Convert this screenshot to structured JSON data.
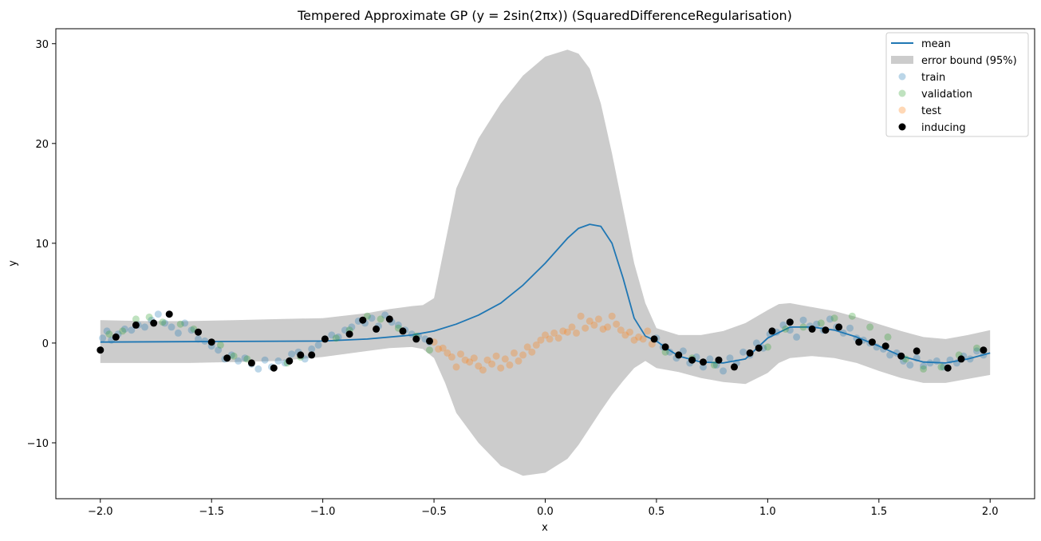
{
  "chart_data": {
    "type": "line",
    "title": "Tempered Approximate GP (y = 2sin(2πx)) (SquaredDifferenceRegularisation)",
    "xlabel": "x",
    "ylabel": "y",
    "xlim": [
      -2.2,
      2.2
    ],
    "ylim": [
      -15.6,
      31.5
    ],
    "xticks": [
      -2.0,
      -1.5,
      -1.0,
      -0.5,
      0.0,
      0.5,
      1.0,
      1.5,
      2.0
    ],
    "xtick_labels": [
      "−2.0",
      "−1.5",
      "−1.0",
      "−0.5",
      "0.0",
      "0.5",
      "1.0",
      "1.5",
      "2.0"
    ],
    "yticks": [
      -10,
      0,
      10,
      20,
      30
    ],
    "ytick_labels": [
      "−10",
      "0",
      "10",
      "20",
      "30"
    ],
    "grid": false,
    "legend_position": "top-right",
    "colors": {
      "mean": "#1f77b4",
      "band": "#cccccc",
      "train": "#1f77b4",
      "validation": "#2ca02c",
      "test": "#ff7f0e",
      "inducing": "#000000"
    },
    "legend": [
      {
        "key": "mean",
        "label": "mean",
        "kind": "line"
      },
      {
        "key": "band",
        "label": "error bound (95%)",
        "kind": "patch"
      },
      {
        "key": "train",
        "label": "train",
        "kind": "marker"
      },
      {
        "key": "validation",
        "label": "validation",
        "kind": "marker"
      },
      {
        "key": "test",
        "label": "test",
        "kind": "marker"
      },
      {
        "key": "inducing",
        "label": "inducing",
        "kind": "marker"
      }
    ],
    "mean": {
      "x": [
        -2.0,
        -1.5,
        -1.0,
        -0.8,
        -0.6,
        -0.5,
        -0.4,
        -0.3,
        -0.2,
        -0.1,
        0.0,
        0.1,
        0.15,
        0.2,
        0.25,
        0.3,
        0.35,
        0.4,
        0.45,
        0.5,
        0.55,
        0.6,
        0.7,
        0.8,
        0.9,
        1.0,
        1.1,
        1.2,
        1.3,
        1.4,
        1.5,
        1.6,
        1.7,
        1.8,
        1.9,
        2.0
      ],
      "y": [
        0.1,
        0.15,
        0.2,
        0.4,
        0.8,
        1.2,
        1.9,
        2.8,
        4.0,
        5.8,
        8.0,
        10.5,
        11.5,
        11.9,
        11.7,
        10.0,
        6.5,
        2.5,
        0.7,
        0.2,
        -0.6,
        -1.3,
        -1.9,
        -2.0,
        -1.6,
        0.5,
        1.6,
        1.6,
        1.3,
        0.6,
        -0.3,
        -1.3,
        -1.9,
        -2.0,
        -1.6,
        -1.0
      ]
    },
    "band": {
      "x": [
        -2.0,
        -1.8,
        -1.6,
        -1.4,
        -1.2,
        -1.0,
        -0.8,
        -0.7,
        -0.6,
        -0.55,
        -0.5,
        -0.45,
        -0.4,
        -0.3,
        -0.2,
        -0.1,
        0.0,
        0.1,
        0.15,
        0.2,
        0.25,
        0.3,
        0.35,
        0.4,
        0.45,
        0.5,
        0.6,
        0.7,
        0.8,
        0.9,
        1.0,
        1.05,
        1.1,
        1.2,
        1.3,
        1.4,
        1.5,
        1.6,
        1.7,
        1.8,
        1.9,
        2.0
      ],
      "upper": [
        2.3,
        2.2,
        2.2,
        2.3,
        2.4,
        2.5,
        3.0,
        3.4,
        3.7,
        3.8,
        4.5,
        10.0,
        15.5,
        20.5,
        24.0,
        26.8,
        28.7,
        29.4,
        29.0,
        27.5,
        24.0,
        19.0,
        13.5,
        8.0,
        4.0,
        1.5,
        0.8,
        0.8,
        1.2,
        2.0,
        3.3,
        3.9,
        4.0,
        3.6,
        3.2,
        2.6,
        1.9,
        1.2,
        0.6,
        0.4,
        0.8,
        1.3
      ],
      "lower": [
        -2.0,
        -2.0,
        -2.0,
        -1.9,
        -1.8,
        -1.4,
        -0.8,
        -0.5,
        -0.4,
        -0.6,
        -1.5,
        -4.0,
        -7.0,
        -10.0,
        -12.3,
        -13.3,
        -13.0,
        -11.6,
        -10.2,
        -8.5,
        -6.8,
        -5.2,
        -3.8,
        -2.5,
        -1.8,
        -2.5,
        -2.9,
        -3.5,
        -3.9,
        -4.1,
        -3.0,
        -2.0,
        -1.5,
        -1.3,
        -1.5,
        -2.0,
        -2.8,
        -3.5,
        -4.0,
        -4.0,
        -3.6,
        -3.2
      ]
    },
    "train": {
      "x": [
        -1.99,
        -1.97,
        -1.95,
        -1.92,
        -1.89,
        -1.86,
        -1.83,
        -1.8,
        -1.77,
        -1.74,
        -1.71,
        -1.68,
        -1.65,
        -1.62,
        -1.59,
        -1.56,
        -1.53,
        -1.5,
        -1.47,
        -1.44,
        -1.41,
        -1.38,
        -1.35,
        -1.32,
        -1.29,
        -1.26,
        -1.23,
        -1.2,
        -1.17,
        -1.14,
        -1.11,
        -1.08,
        -1.05,
        -1.02,
        -0.99,
        -0.96,
        -0.93,
        -0.9,
        -0.87,
        -0.84,
        -0.81,
        -0.78,
        -0.75,
        -0.72,
        -0.69,
        -0.66,
        -0.63,
        -0.6,
        -0.57,
        -0.54,
        -0.52,
        0.5,
        0.53,
        0.56,
        0.59,
        0.62,
        0.65,
        0.68,
        0.71,
        0.74,
        0.77,
        0.8,
        0.83,
        0.86,
        0.89,
        0.92,
        0.95,
        0.98,
        1.01,
        1.04,
        1.07,
        1.1,
        1.13,
        1.16,
        1.19,
        1.22,
        1.25,
        1.28,
        1.31,
        1.34,
        1.37,
        1.4,
        1.43,
        1.46,
        1.49,
        1.52,
        1.55,
        1.58,
        1.61,
        1.64,
        1.67,
        1.7,
        1.73,
        1.76,
        1.79,
        1.82,
        1.85,
        1.88,
        1.91,
        1.94,
        1.97
      ],
      "y": [
        0.5,
        1.2,
        0.3,
        0.9,
        1.4,
        1.3,
        1.8,
        1.6,
        2.3,
        2.9,
        2.0,
        1.6,
        1.0,
        2.0,
        1.3,
        0.4,
        0.2,
        -0.3,
        -0.7,
        -1.6,
        -1.2,
        -1.8,
        -1.5,
        -2.1,
        -2.6,
        -1.7,
        -2.4,
        -1.8,
        -2.0,
        -1.1,
        -0.9,
        -1.6,
        -0.6,
        -0.2,
        0.4,
        0.8,
        0.6,
        1.3,
        1.6,
        2.2,
        2.0,
        2.5,
        1.7,
        2.8,
        2.1,
        1.8,
        1.3,
        0.9,
        0.7,
        0.4,
        0.1,
        0.5,
        -0.4,
        -0.9,
        -1.5,
        -0.8,
        -2.0,
        -1.4,
        -2.4,
        -1.6,
        -2.2,
        -2.8,
        -1.5,
        -2.0,
        -0.9,
        -1.2,
        0.0,
        -0.5,
        0.9,
        1.1,
        1.8,
        1.3,
        0.6,
        2.3,
        1.7,
        1.9,
        1.3,
        2.4,
        1.6,
        1.0,
        1.5,
        0.5,
        0.3,
        0.0,
        -0.4,
        -0.6,
        -1.2,
        -1.0,
        -1.8,
        -2.2,
        -1.5,
        -2.3,
        -2.0,
        -1.8,
        -2.4,
        -1.7,
        -2.0,
        -1.3,
        -1.6,
        -0.8,
        -1.2
      ]
    },
    "validation": {
      "x": [
        -1.96,
        -1.9,
        -1.84,
        -1.78,
        -1.72,
        -1.64,
        -1.58,
        -1.46,
        -1.4,
        -1.34,
        -1.16,
        -1.1,
        -0.94,
        -0.88,
        -0.8,
        -0.74,
        -0.66,
        -0.58,
        -0.52,
        0.54,
        0.66,
        0.76,
        1.0,
        1.08,
        1.16,
        1.24,
        1.3,
        1.38,
        1.46,
        1.54,
        1.62,
        1.7,
        1.78,
        1.86,
        1.94
      ],
      "y": [
        0.9,
        1.2,
        2.4,
        2.6,
        2.1,
        1.9,
        1.4,
        -0.2,
        -1.3,
        -1.6,
        -2.0,
        -1.4,
        0.5,
        1.3,
        2.7,
        2.4,
        1.5,
        0.7,
        -0.7,
        -0.9,
        -1.5,
        -2.2,
        -0.4,
        1.4,
        1.6,
        2.0,
        2.5,
        2.7,
        1.6,
        0.6,
        -1.6,
        -2.6,
        -2.4,
        -1.2,
        -0.5
      ]
    },
    "test": {
      "x": [
        -0.5,
        -0.48,
        -0.46,
        -0.44,
        -0.42,
        -0.4,
        -0.38,
        -0.36,
        -0.34,
        -0.32,
        -0.3,
        -0.28,
        -0.26,
        -0.24,
        -0.22,
        -0.2,
        -0.18,
        -0.16,
        -0.14,
        -0.12,
        -0.1,
        -0.08,
        -0.06,
        -0.04,
        -0.02,
        0.0,
        0.02,
        0.04,
        0.06,
        0.08,
        0.1,
        0.12,
        0.14,
        0.16,
        0.18,
        0.2,
        0.22,
        0.24,
        0.26,
        0.28,
        0.3,
        0.32,
        0.34,
        0.36,
        0.38,
        0.4,
        0.42,
        0.44,
        0.46,
        0.48
      ],
      "y": [
        0.1,
        -0.6,
        -0.5,
        -1.0,
        -1.4,
        -2.4,
        -1.1,
        -1.7,
        -1.9,
        -1.5,
        -2.3,
        -2.7,
        -1.7,
        -2.1,
        -1.3,
        -2.5,
        -1.6,
        -2.2,
        -1.0,
        -1.8,
        -1.2,
        -0.4,
        -0.9,
        -0.2,
        0.3,
        0.8,
        0.4,
        1.0,
        0.5,
        1.2,
        1.1,
        1.6,
        1.0,
        2.7,
        1.5,
        2.2,
        1.8,
        2.4,
        1.4,
        1.6,
        2.7,
        1.9,
        1.3,
        0.8,
        1.1,
        0.3,
        0.6,
        0.4,
        1.2,
        -0.1
      ]
    },
    "inducing": {
      "x": [
        -2.0,
        -1.93,
        -1.84,
        -1.76,
        -1.69,
        -1.56,
        -1.5,
        -1.43,
        -1.32,
        -1.22,
        -1.15,
        -1.1,
        -1.05,
        -0.99,
        -0.88,
        -0.82,
        -0.76,
        -0.7,
        -0.64,
        -0.58,
        -0.52,
        0.49,
        0.54,
        0.6,
        0.66,
        0.71,
        0.78,
        0.85,
        0.92,
        0.96,
        1.02,
        1.1,
        1.2,
        1.26,
        1.32,
        1.41,
        1.47,
        1.53,
        1.6,
        1.67,
        1.81,
        1.87,
        1.97
      ],
      "y": [
        -0.7,
        0.6,
        1.8,
        2.0,
        2.9,
        1.1,
        0.1,
        -1.5,
        -2.0,
        -2.5,
        -1.8,
        -1.2,
        -1.2,
        0.4,
        0.9,
        2.3,
        1.4,
        2.4,
        1.2,
        0.4,
        0.2,
        0.4,
        -0.4,
        -1.2,
        -1.7,
        -1.9,
        -1.7,
        -2.4,
        -1.0,
        -0.5,
        1.2,
        2.1,
        1.4,
        1.3,
        1.6,
        0.1,
        0.1,
        -0.3,
        -1.3,
        -0.8,
        -2.5,
        -1.6,
        -0.7
      ]
    }
  }
}
